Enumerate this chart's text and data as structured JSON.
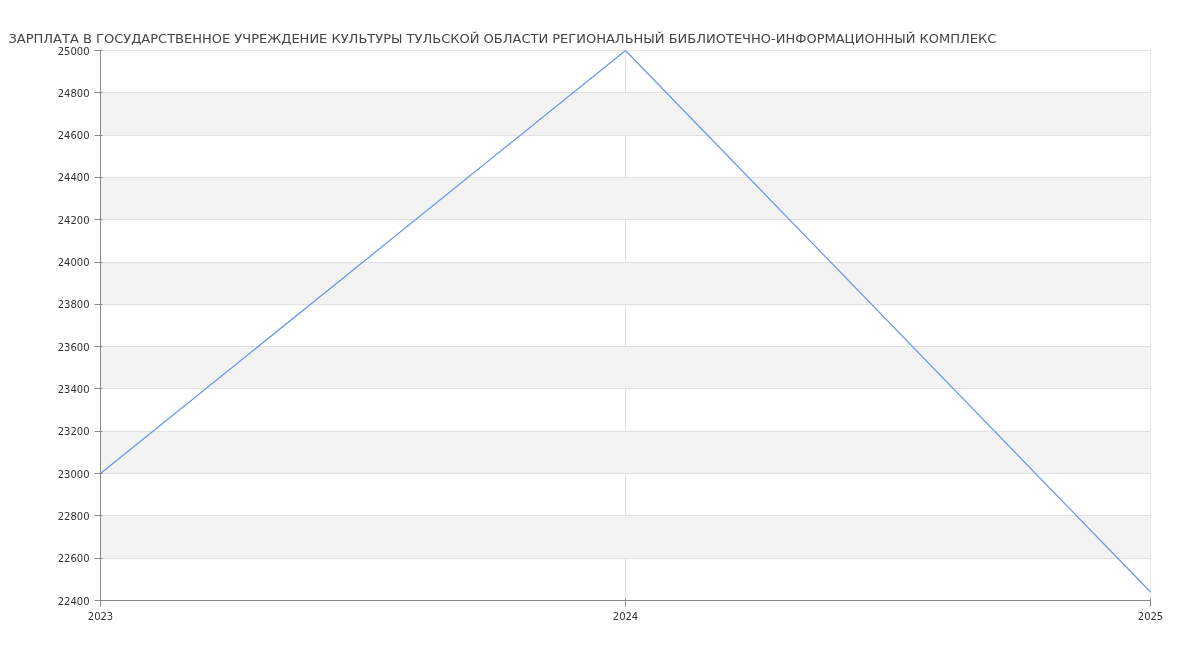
{
  "chart_data": {
    "type": "line",
    "title": "ЗАРПЛАТА В ГОСУДАРСТВЕННОЕ УЧРЕЖДЕНИЕ КУЛЬТУРЫ ТУЛЬСКОЙ ОБЛАСТИ РЕГИОНАЛЬНЫЙ БИБЛИОТЕЧНО-ИНФОРМАЦИОННЫЙ КОМПЛЕКС",
    "x": [
      2023,
      2024,
      2025
    ],
    "series": [
      {
        "color": "#6495ed",
        "values": [
          23000,
          25000,
          22440
        ]
      }
    ],
    "xlim": [
      2023,
      2025
    ],
    "xticks": [
      2023,
      2024,
      2025
    ],
    "ylim": [
      22400,
      25000
    ],
    "yticks": [
      22400,
      22600,
      22800,
      23000,
      23200,
      23400,
      23600,
      23800,
      24000,
      24200,
      24400,
      24600,
      24800,
      25000
    ],
    "grid": true,
    "marker": "none",
    "line_style": "solid"
  }
}
